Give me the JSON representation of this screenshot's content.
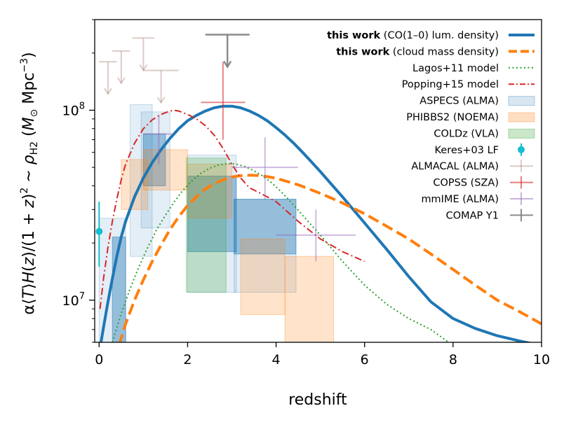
{
  "chart_data": {
    "type": "line",
    "title": "",
    "xlabel": "redshift",
    "ylabel_parts": {
      "prefix": "α⟨",
      "t_var": "T",
      "mid": "⟩",
      "h_var": "H",
      "after_h": "(",
      "z1": "z",
      "mid2": ")/(1 + ",
      "z2": "z",
      "close_sq": ")",
      "sq_sup": "2",
      "approx": " ~ ",
      "rho": "ρ",
      "rho_sub": "H2",
      "unit_open": " (",
      "msun_m": "M",
      "msun_sub": "⊙",
      "mpc": " Mpc",
      "mpc_sup": "−3",
      "unit_close": ")"
    },
    "xlim": [
      -0.1,
      10
    ],
    "ylim": [
      6000000,
      300000000
    ],
    "yscale": "log",
    "x_ticks": [
      "0",
      "2",
      "4",
      "6",
      "8",
      "10"
    ],
    "y_ticks": [
      {
        "base": "10",
        "exp": "7",
        "value": 10000000
      },
      {
        "base": "10",
        "exp": "8",
        "value": 100000000
      }
    ],
    "legend": {
      "position": "top-right",
      "entries": [
        {
          "bold": "this work",
          "text": " (CO(1–0) lum. density)"
        },
        {
          "bold": "this work",
          "text": " (cloud mass density)"
        },
        {
          "bold": "",
          "text": "Lagos+11 model"
        },
        {
          "bold": "",
          "text": "Popping+15 model"
        },
        {
          "bold": "",
          "text": "ASPECS (ALMA)"
        },
        {
          "bold": "",
          "text": "PHIBBS2 (NOEMA)"
        },
        {
          "bold": "",
          "text": "COLDz (VLA)"
        },
        {
          "bold": "",
          "text": "Keres+03 LF"
        },
        {
          "bold": "",
          "text": "ALMACAL (ALMA)"
        },
        {
          "bold": "",
          "text": "COPSS (SZA)"
        },
        {
          "bold": "",
          "text": "mmIME (ALMA)"
        },
        {
          "bold": "",
          "text": "COMAP Y1"
        }
      ]
    },
    "series": [
      {
        "name": "this work (CO(1–0) lum. density)",
        "color": "#1f77b4",
        "style": "solid",
        "x": [
          0.02,
          0.1,
          0.2,
          0.3,
          0.4,
          0.5,
          0.6,
          0.8,
          1.0,
          1.2,
          1.4,
          1.6,
          1.8,
          2.0,
          2.2,
          2.4,
          2.6,
          2.8,
          3.0,
          3.2,
          3.4,
          3.6,
          3.8,
          4.0,
          4.2,
          4.4,
          4.6,
          4.8,
          5.0,
          5.5,
          6.0,
          6.5,
          7.0,
          7.5,
          8.0,
          8.5,
          9.0,
          9.5,
          9.8
        ],
        "y": [
          5600000,
          7200000,
          9800000,
          13000000,
          17000000,
          21500000,
          26000000,
          35000000,
          44000000,
          53000000,
          62000000,
          71000000,
          80000000,
          88000000,
          94000000,
          99000000,
          103000000,
          105000000,
          105000000,
          103000000,
          99000000,
          94000000,
          88000000,
          81000000,
          74000000,
          67000000,
          60000000,
          53500000,
          47500000,
          35000000,
          25500000,
          18500000,
          13300000,
          9800000,
          8000000,
          7100000,
          6500000,
          6100000,
          5900000
        ]
      },
      {
        "name": "this work (cloud mass density)",
        "color": "#ff7f0e",
        "style": "dashed",
        "x": [
          0.45,
          0.6,
          0.8,
          1.0,
          1.2,
          1.4,
          1.6,
          1.8,
          2.0,
          2.2,
          2.4,
          2.6,
          2.8,
          3.0,
          3.2,
          3.4,
          3.6,
          3.8,
          4.0,
          4.2,
          4.5,
          5.0,
          5.5,
          6.0,
          6.5,
          7.0,
          7.5,
          8.0,
          8.5,
          9.0,
          9.5,
          10.0
        ],
        "y": [
          5800000,
          7500000,
          10000000,
          12800000,
          16000000,
          19500000,
          23500000,
          27500000,
          31500000,
          35000000,
          38500000,
          41000000,
          43000000,
          44500000,
          45200000,
          45500000,
          45300000,
          44700000,
          43800000,
          42500000,
          40500000,
          36500000,
          32500000,
          28500000,
          24500000,
          21000000,
          17500000,
          14500000,
          12000000,
          10000000,
          8700000,
          7500000
        ]
      },
      {
        "name": "Lagos+11 model",
        "color": "#2ca02c",
        "style": "dotted",
        "x": [
          0.3,
          0.5,
          0.7,
          0.9,
          1.1,
          1.3,
          1.5,
          1.7,
          1.9,
          2.1,
          2.3,
          2.5,
          2.7,
          2.9,
          3.1,
          3.3,
          3.5,
          3.7,
          3.9,
          4.1,
          4.3,
          4.6,
          5.0,
          5.5,
          6.0,
          6.5,
          7.0,
          7.5,
          7.9
        ],
        "y": [
          6000000,
          8500000,
          11500000,
          15000000,
          19000000,
          23500000,
          28000000,
          33000000,
          38000000,
          42500000,
          46500000,
          49500000,
          51500000,
          52500000,
          52000000,
          50500000,
          48000000,
          45000000,
          41500000,
          37500000,
          33500000,
          28000000,
          22000000,
          16000000,
          12000000,
          9500000,
          8000000,
          7000000,
          6000000
        ]
      },
      {
        "name": "Popping+15 model",
        "color": "#d62728",
        "style": "dashdot",
        "x": [
          0.02,
          0.1,
          0.2,
          0.3,
          0.4,
          0.5,
          0.6,
          0.8,
          1.0,
          1.2,
          1.4,
          1.6,
          1.7,
          1.8,
          2.0,
          2.2,
          2.4,
          2.6,
          2.8,
          3.0,
          3.2,
          3.4,
          3.6,
          3.8,
          4.0,
          4.2,
          4.5,
          5.0,
          5.5,
          6.0
        ],
        "y": [
          9000000,
          13000000,
          19000000,
          26000000,
          34000000,
          43000000,
          52000000,
          67000000,
          80000000,
          89000000,
          95000000,
          99000000,
          100000000,
          99000000,
          95000000,
          90000000,
          83000000,
          74000000,
          63000000,
          52000000,
          44000000,
          39000000,
          37000000,
          35000000,
          33000000,
          30000000,
          26000000,
          21000000,
          18000000,
          16000000
        ]
      }
    ],
    "boxes": [
      {
        "survey": "ASPECS (ALMA)",
        "color": "#1f77b4",
        "x": [
          0.3,
          0.6
        ],
        "y": [
          6000000,
          21500000
        ],
        "alpha": 0.4
      },
      {
        "survey": "ASPECS (ALMA)",
        "color": "#1f77b4",
        "x": [
          0.0,
          0.6
        ],
        "y": [
          6000000,
          27000000
        ],
        "alpha": 0.12
      },
      {
        "survey": "ASPECS (ALMA)",
        "color": "#1f77b4",
        "x": [
          0.7,
          1.2
        ],
        "y": [
          17000000,
          107000000
        ],
        "alpha": 0.12
      },
      {
        "survey": "ASPECS (ALMA)",
        "color": "#1f77b4",
        "x": [
          1.0,
          1.5
        ],
        "y": [
          40000000,
          75000000
        ],
        "alpha": 0.4
      },
      {
        "survey": "ASPECS (ALMA)",
        "color": "#1f77b4",
        "x": [
          0.95,
          1.6
        ],
        "y": [
          24000000,
          98000000
        ],
        "alpha": 0.12
      },
      {
        "survey": "ASPECS (ALMA)",
        "color": "#1f77b4",
        "x": [
          2.0,
          3.1
        ],
        "y": [
          18000000,
          45000000
        ],
        "alpha": 0.4
      },
      {
        "survey": "ASPECS (ALMA)",
        "color": "#1f77b4",
        "x": [
          2.0,
          3.1
        ],
        "y": [
          11000000,
          58000000
        ],
        "alpha": 0.12
      },
      {
        "survey": "ASPECS (ALMA)",
        "color": "#1f77b4",
        "x": [
          3.05,
          4.45
        ],
        "y": [
          17500000,
          34000000
        ],
        "alpha": 0.4
      },
      {
        "survey": "ASPECS (ALMA)",
        "color": "#1f77b4",
        "x": [
          3.05,
          4.45
        ],
        "y": [
          11000000,
          34000000
        ],
        "alpha": 0.12
      },
      {
        "survey": "PHIBBS2 (NOEMA)",
        "color": "#ff7f0e",
        "x": [
          0.5,
          1.1
        ],
        "y": [
          30000000,
          55000000
        ],
        "alpha": 0.22
      },
      {
        "survey": "PHIBBS2 (NOEMA)",
        "color": "#ff7f0e",
        "x": [
          1.0,
          2.0
        ],
        "y": [
          38000000,
          62000000
        ],
        "alpha": 0.22
      },
      {
        "survey": "PHIBBS2 (NOEMA)",
        "color": "#ff7f0e",
        "x": [
          2.0,
          3.0
        ],
        "y": [
          27000000,
          52000000
        ],
        "alpha": 0.22
      },
      {
        "survey": "PHIBBS2 (NOEMA)",
        "color": "#ff7f0e",
        "x": [
          3.2,
          4.2
        ],
        "y": [
          8400000,
          21000000
        ],
        "alpha": 0.22
      },
      {
        "survey": "PHIBBS2 (NOEMA)",
        "color": "#ff7f0e",
        "x": [
          4.2,
          5.3
        ],
        "y": [
          6000000,
          17000000
        ],
        "alpha": 0.22
      },
      {
        "survey": "COLDz (VLA)",
        "color": "#2ca02c",
        "x": [
          1.97,
          2.87
        ],
        "y": [
          11000000,
          56000000
        ],
        "alpha": 0.22
      }
    ],
    "keres": {
      "survey": "Keres+03 LF",
      "color": "#17becf",
      "x": 0.0,
      "y": 23000000,
      "yerr": [
        15000000,
        33000000
      ]
    },
    "almacal_limits": [
      {
        "survey": "ALMACAL (ALMA)",
        "x": 0.2,
        "y": 180000000,
        "xerr": [
          0.0,
          0.4
        ]
      },
      {
        "survey": "ALMACAL (ALMA)",
        "x": 0.5,
        "y": 205000000,
        "xerr": [
          0.3,
          0.7
        ]
      },
      {
        "survey": "ALMACAL (ALMA)",
        "x": 1.0,
        "y": 240000000,
        "xerr": [
          0.75,
          1.25
        ]
      },
      {
        "survey": "ALMACAL (ALMA)",
        "x": 1.4,
        "y": 162000000,
        "xerr": [
          1.0,
          1.8
        ]
      }
    ],
    "copss": {
      "survey": "COPSS (SZA)",
      "color": "#d62728",
      "x": 2.8,
      "y": 110000000,
      "xerr": [
        2.3,
        3.3
      ],
      "yerr": [
        70000000,
        180000000
      ]
    },
    "mmime": [
      {
        "survey": "mmIME (ALMA)",
        "color": "#9467bd",
        "x": 1.35,
        "y": 75000000,
        "xerr": [
          1.0,
          1.7
        ],
        "yerr": [
          52000000,
          95000000
        ]
      },
      {
        "survey": "mmIME (ALMA)",
        "color": "#9467bd",
        "x": 3.75,
        "y": 50000000,
        "xerr": [
          3.0,
          4.5
        ],
        "yerr": [
          34000000,
          72000000
        ]
      },
      {
        "survey": "mmIME (ALMA)",
        "color": "#9467bd",
        "x": 4.9,
        "y": 22000000,
        "xerr": [
          4.0,
          5.8
        ],
        "yerr": [
          16000000,
          30000000
        ]
      }
    ],
    "comap": {
      "survey": "COMAP Y1",
      "color": "#7f7f7f",
      "x": 2.9,
      "y": 250000000,
      "xerr": [
        2.4,
        3.4
      ]
    }
  }
}
